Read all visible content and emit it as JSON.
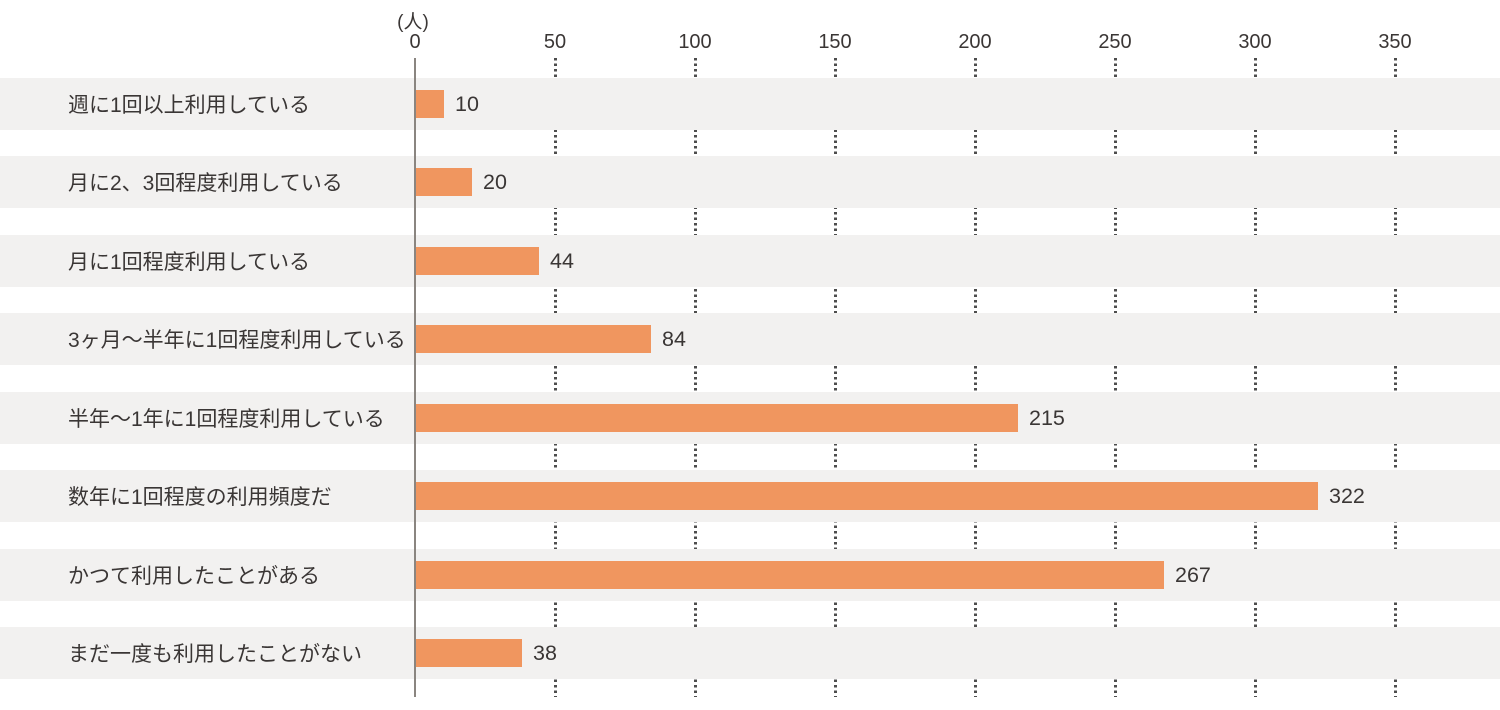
{
  "chart_data": {
    "type": "bar",
    "orientation": "horizontal",
    "title": "",
    "subtitle": "",
    "xlabel": "",
    "ylabel": "",
    "unit_label": "(人)",
    "xlim": [
      0,
      388
    ],
    "ticks": [
      0,
      50,
      100,
      150,
      200,
      250,
      300,
      350
    ],
    "categories": [
      "週に1回以上利用している",
      "月に2、3回程度利用している",
      "月に1回程度利用している",
      "3ヶ月〜半年に1回程度利用している",
      "半年〜1年に1回程度利用している",
      "数年に1回程度の利用頻度だ",
      "かつて利用したことがある",
      "まだ一度も利用したことがない"
    ],
    "values": [
      10,
      20,
      44,
      84,
      215,
      322,
      267,
      38
    ],
    "legend": "none",
    "grid": "dotted vertical gridlines at each tick, visible between row bands",
    "colors": {
      "bar": "#F0965F",
      "row_band": "#F2F1F0",
      "axis_line": "#8A8580",
      "grid_dot": "#4D4D4D",
      "text": "#3A3635",
      "background": "#FFFFFF"
    }
  }
}
